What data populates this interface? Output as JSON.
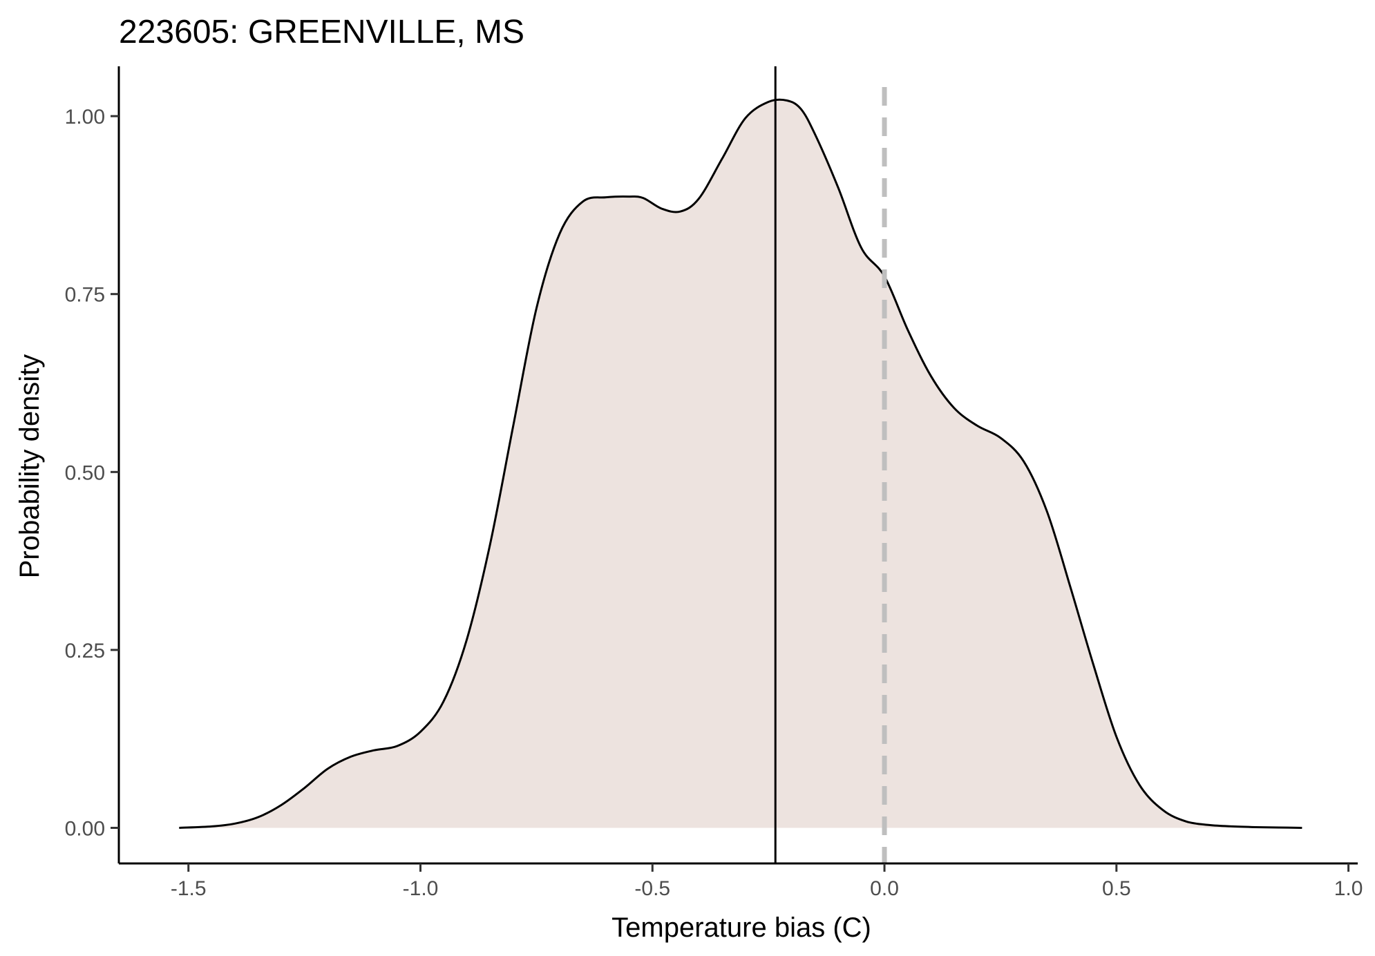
{
  "chart_data": {
    "type": "area",
    "title": "223605: GREENVILLE, MS",
    "xlabel": "Temperature bias (C)",
    "ylabel": "Probability density",
    "xlim": [
      -1.65,
      1.02
    ],
    "ylim": [
      -0.05,
      1.07
    ],
    "x_ticks": [
      -1.5,
      -1.0,
      -0.5,
      0.0,
      0.5,
      1.0
    ],
    "x_tick_labels": [
      "-1.5",
      "-1.0",
      "-0.5",
      "0.0",
      "0.5",
      "1.0"
    ],
    "y_ticks": [
      0.0,
      0.25,
      0.5,
      0.75,
      1.0
    ],
    "y_tick_labels": [
      "0.00",
      "0.25",
      "0.50",
      "0.75",
      "1.00"
    ],
    "grid": false,
    "series": [
      {
        "x": [
          -1.52,
          -1.45,
          -1.4,
          -1.35,
          -1.3,
          -1.25,
          -1.2,
          -1.15,
          -1.1,
          -1.05,
          -1.0,
          -0.95,
          -0.9,
          -0.85,
          -0.8,
          -0.75,
          -0.7,
          -0.65,
          -0.6,
          -0.55,
          -0.52,
          -0.48,
          -0.44,
          -0.4,
          -0.35,
          -0.3,
          -0.25,
          -0.21,
          -0.18,
          -0.15,
          -0.1,
          -0.05,
          0.0,
          0.05,
          0.1,
          0.15,
          0.2,
          0.25,
          0.3,
          0.35,
          0.4,
          0.45,
          0.5,
          0.55,
          0.6,
          0.65,
          0.7,
          0.75,
          0.8,
          0.85,
          0.9
        ],
        "y": [
          0.0,
          0.002,
          0.006,
          0.015,
          0.032,
          0.056,
          0.083,
          0.1,
          0.109,
          0.115,
          0.135,
          0.178,
          0.265,
          0.398,
          0.565,
          0.73,
          0.835,
          0.88,
          0.886,
          0.887,
          0.885,
          0.87,
          0.866,
          0.884,
          0.94,
          0.997,
          1.02,
          1.022,
          1.01,
          0.975,
          0.9,
          0.815,
          0.775,
          0.7,
          0.635,
          0.59,
          0.565,
          0.548,
          0.515,
          0.445,
          0.34,
          0.23,
          0.128,
          0.06,
          0.025,
          0.009,
          0.004,
          0.002,
          0.001,
          0.0005,
          0.0
        ]
      }
    ],
    "fill_color": "#ede3df",
    "line_color": "#000000",
    "reference_lines": [
      {
        "x": -0.235,
        "style": "solid",
        "color": "#000000"
      },
      {
        "x": 0.0,
        "style": "dashed",
        "color": "#bfbfbf"
      }
    ]
  }
}
